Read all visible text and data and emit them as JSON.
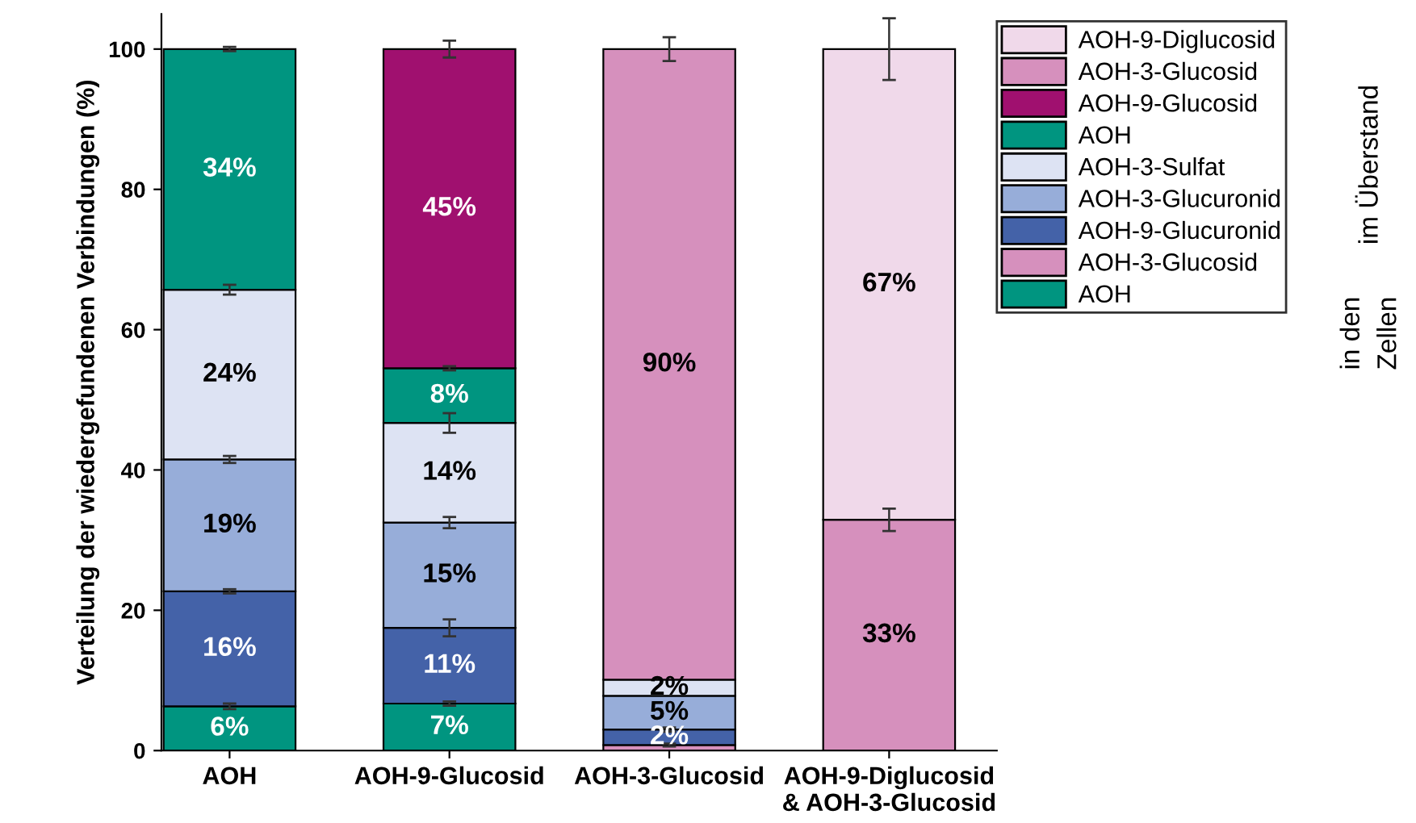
{
  "chart_data": {
    "type": "bar",
    "stacked": true,
    "ylabel": "Verteilung der wiedergefundenen Verbindungen (%)",
    "categories": [
      "AOH",
      "AOH-9-Glucosid",
      "AOH-3-Glucosid",
      "AOH-9-Diglucosid\n& AOH-3-Glucosid"
    ],
    "ylim": [
      0,
      105
    ],
    "yticks": [
      0,
      20,
      40,
      60,
      80,
      100
    ],
    "grid": false,
    "legend": "top right",
    "series": [
      {
        "name": "AOH",
        "color": "#009580",
        "values": [
          6.3,
          6.7,
          null,
          null
        ],
        "errors": [
          0.4,
          0.3,
          null,
          null
        ],
        "value_labels": [
          "6%",
          "7%",
          null,
          null
        ]
      },
      {
        "name": "AOH-3-Glucosid",
        "color": "#d690bd",
        "values": [
          null,
          null,
          0.8,
          null
        ],
        "errors": [
          null,
          null,
          0.2,
          null
        ],
        "value_labels": [
          null,
          null,
          null,
          null
        ]
      },
      {
        "name": "AOH-9-Glucuronid",
        "color": "#4462a8",
        "values": [
          16.4,
          10.8,
          2.2,
          null
        ],
        "errors": [
          0.3,
          1.2,
          0.3,
          null
        ],
        "value_labels": [
          "16%",
          "11%",
          "2%",
          null
        ]
      },
      {
        "name": "AOH-3-Glucuronid",
        "color": "#97add9",
        "values": [
          18.8,
          15.0,
          4.8,
          null
        ],
        "errors": [
          0.5,
          0.8,
          null,
          null
        ],
        "value_labels": [
          "19%",
          "15%",
          "5%",
          null
        ]
      },
      {
        "name": "AOH-3-Sulfat",
        "color": "#dde3f3",
        "values": [
          24.2,
          14.2,
          2.3,
          null
        ],
        "errors": [
          0.7,
          1.4,
          null,
          null
        ],
        "value_labels": [
          "24%",
          "14%",
          "2%",
          null
        ]
      },
      {
        "name": "AOH",
        "color": "#009580",
        "values": [
          34.3,
          7.8,
          null,
          null
        ],
        "errors": [
          0.3,
          0.3,
          null,
          null
        ],
        "value_labels": [
          "34%",
          "8%",
          null,
          null
        ]
      },
      {
        "name": "AOH-9-Glucosid",
        "color": "#a0106f",
        "values": [
          null,
          45.5,
          null,
          null
        ],
        "errors": [
          null,
          1.2,
          null,
          null
        ],
        "value_labels": [
          null,
          "45%",
          null,
          null
        ]
      },
      {
        "name": "AOH-3-Glucosid",
        "color": "#d690bd",
        "values": [
          null,
          null,
          89.9,
          32.9
        ],
        "errors": [
          null,
          null,
          1.7,
          1.6
        ],
        "value_labels": [
          null,
          null,
          "90%",
          "33%"
        ]
      },
      {
        "name": "AOH-9-Diglucosid",
        "color": "#f0d9ea",
        "values": [
          null,
          null,
          null,
          67.1
        ],
        "errors": [
          null,
          null,
          null,
          4.4
        ],
        "value_labels": [
          null,
          null,
          null,
          "67%"
        ]
      }
    ],
    "annotations": [
      "im Überstand",
      "in den\nZellen"
    ]
  }
}
